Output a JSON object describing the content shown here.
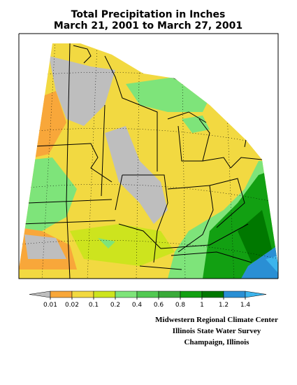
{
  "title": [
    "Total Precipitation in Inches",
    "March 21, 2001 to March 27, 2001"
  ],
  "legend": {
    "levels": [
      0.01,
      0.02,
      0.1,
      0.2,
      0.4,
      0.6,
      0.8,
      1,
      1.2,
      1.4
    ],
    "colors": [
      "#bebebe",
      "#f8a73a",
      "#f2d941",
      "#cde41e",
      "#7ee47a",
      "#52c952",
      "#3aaa3a",
      "#12a012",
      "#007800",
      "#2a8fd4",
      "#3cb4ec"
    ]
  },
  "credits": [
    "Midwestern Regional Climate Center",
    "Illinois State Water Survey",
    "Champaign, Illinois"
  ]
}
